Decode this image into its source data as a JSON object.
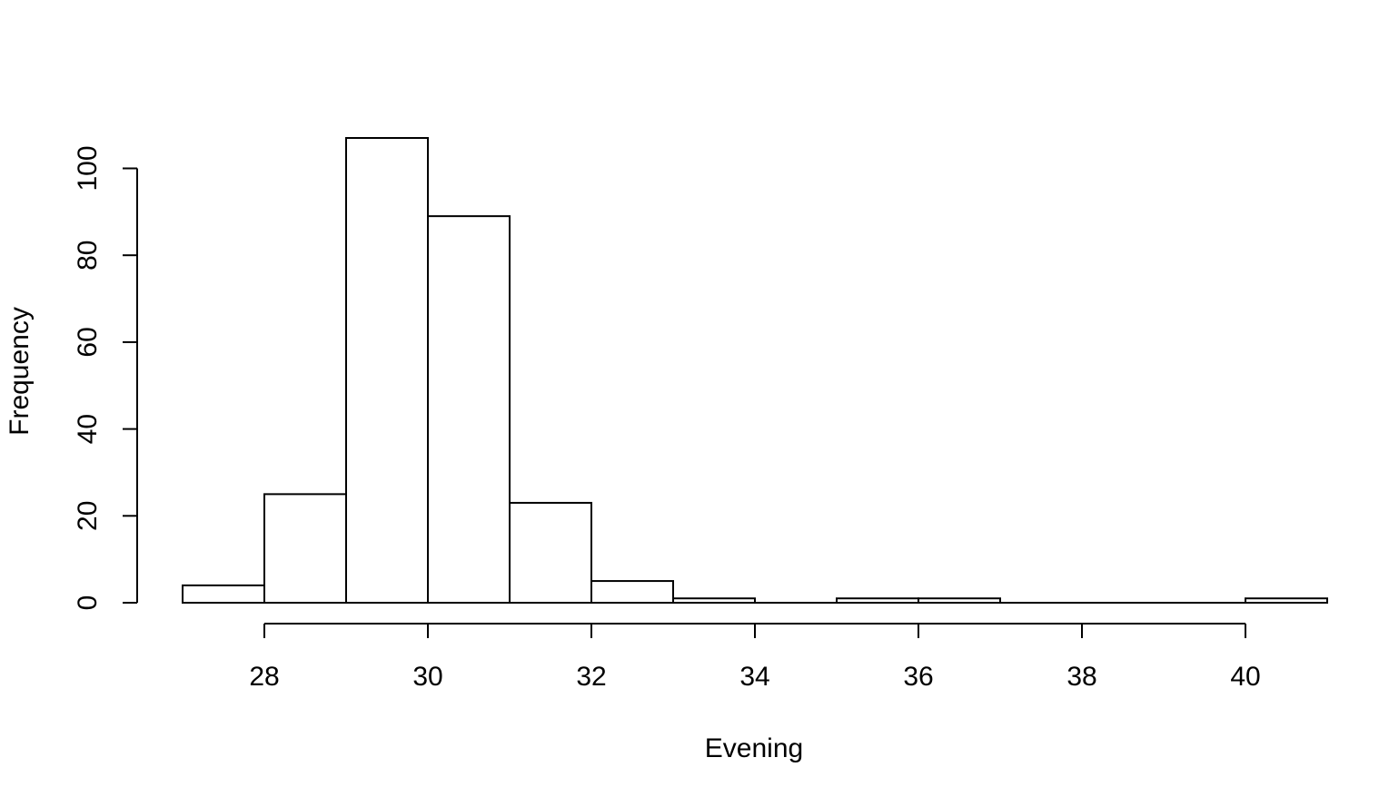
{
  "chart_data": {
    "type": "bar",
    "subtype": "histogram",
    "title": "",
    "xlabel": "Evening",
    "ylabel": "Frequency",
    "bins": [
      {
        "start": 27,
        "end": 28,
        "count": 4
      },
      {
        "start": 28,
        "end": 29,
        "count": 25
      },
      {
        "start": 29,
        "end": 30,
        "count": 107
      },
      {
        "start": 30,
        "end": 31,
        "count": 89
      },
      {
        "start": 31,
        "end": 32,
        "count": 23
      },
      {
        "start": 32,
        "end": 33,
        "count": 5
      },
      {
        "start": 33,
        "end": 34,
        "count": 1
      },
      {
        "start": 34,
        "end": 35,
        "count": 0
      },
      {
        "start": 35,
        "end": 36,
        "count": 1
      },
      {
        "start": 36,
        "end": 37,
        "count": 1
      },
      {
        "start": 37,
        "end": 38,
        "count": 0
      },
      {
        "start": 38,
        "end": 39,
        "count": 0
      },
      {
        "start": 39,
        "end": 40,
        "count": 0
      },
      {
        "start": 40,
        "end": 41,
        "count": 1
      }
    ],
    "xlim": [
      27,
      41
    ],
    "ylim": [
      0,
      107
    ],
    "xticks": [
      "28",
      "30",
      "32",
      "34",
      "36",
      "38",
      "40"
    ],
    "yticks": [
      "0",
      "20",
      "40",
      "60",
      "80",
      "100"
    ],
    "grid": false,
    "legend": "none",
    "bar_fill": "#ffffff",
    "bar_stroke": "#000000"
  }
}
